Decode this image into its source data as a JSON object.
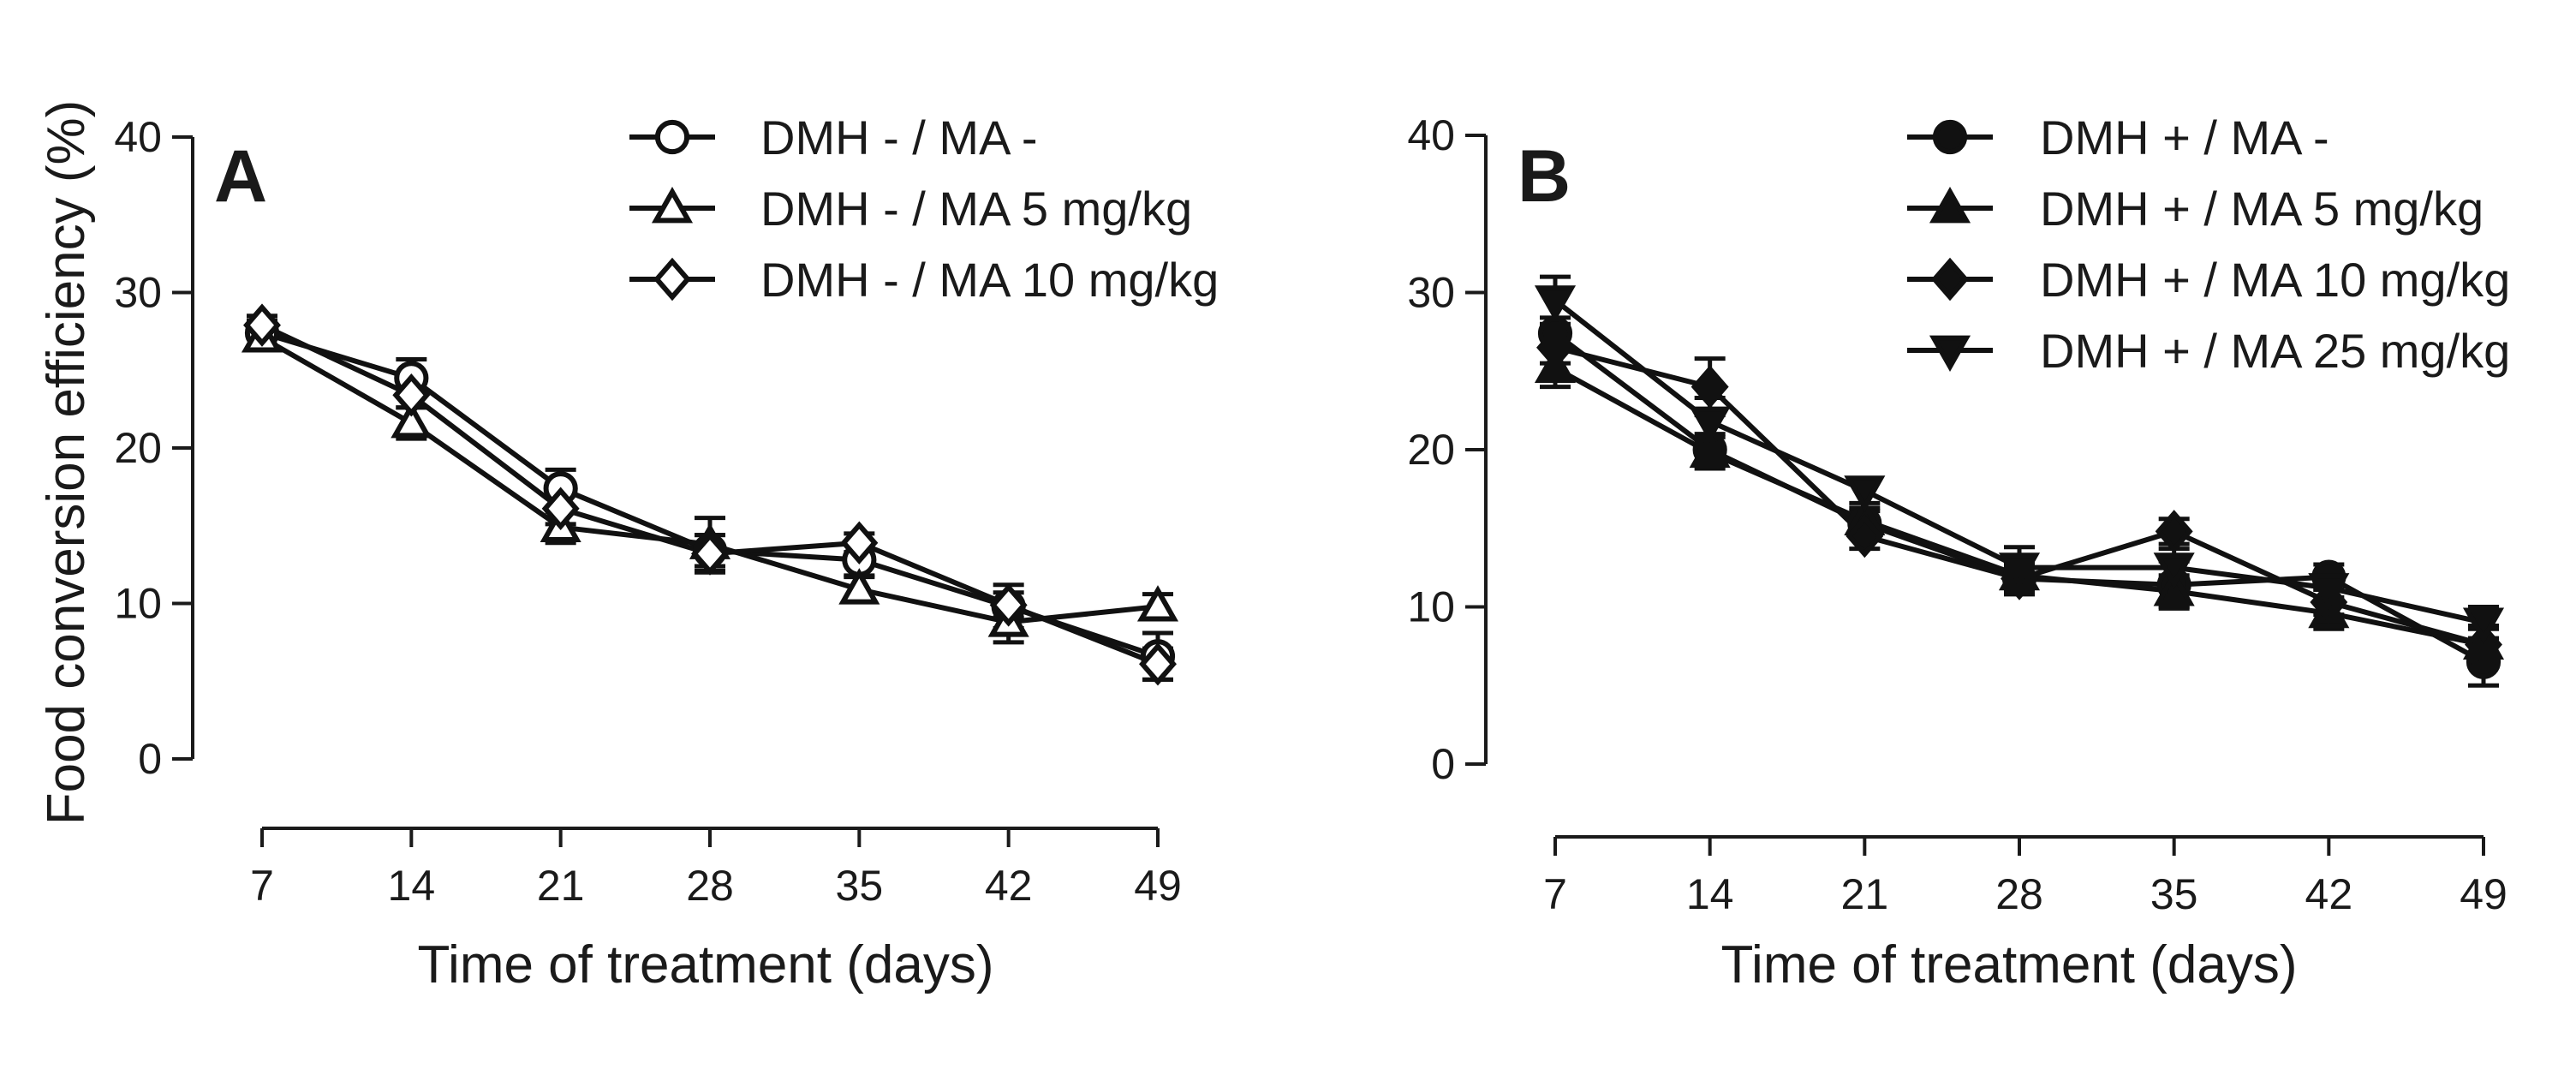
{
  "figure": {
    "ylabel": "Food conversion efficiency (%)"
  },
  "chart_data": [
    {
      "type": "line",
      "panel_label": "A",
      "xlabel": "Time of treatment (days)",
      "ylabel": "Food conversion efficiency (%)",
      "x": [
        7,
        14,
        21,
        28,
        35,
        42,
        49
      ],
      "x_ticks": [
        "7",
        "14",
        "21",
        "28",
        "35",
        "42",
        "49"
      ],
      "y_ticks": [
        "0",
        "10",
        "20",
        "30",
        "40"
      ],
      "xlim": [
        7,
        49
      ],
      "ylim": [
        0,
        40
      ],
      "grid": false,
      "legend_position": "top-right",
      "series": [
        {
          "name": "DMH - / MA -",
          "marker": "circle-open",
          "values": [
            27.4,
            24.5,
            17.4,
            13.4,
            12.8,
            9.8,
            6.6
          ],
          "errors": [
            0.8,
            1.2,
            1.2,
            1.0,
            1.0,
            1.4,
            1.5
          ]
        },
        {
          "name": "DMH - / MA 5 mg/kg",
          "marker": "triangle-up-open",
          "values": [
            27.1,
            21.6,
            14.9,
            13.8,
            10.9,
            8.8,
            9.8
          ],
          "errors": [
            0.6,
            1.0,
            1.0,
            1.7,
            0.8,
            1.3,
            0.8
          ]
        },
        {
          "name": "DMH - / MA 10 mg/kg",
          "marker": "diamond-open",
          "values": [
            27.9,
            23.4,
            16.1,
            13.2,
            13.9,
            9.9,
            6.1
          ],
          "errors": [
            0.6,
            0.8,
            1.0,
            1.2,
            0.6,
            0.8,
            1.0
          ]
        }
      ]
    },
    {
      "type": "line",
      "panel_label": "B",
      "xlabel": "Time of treatment (days)",
      "ylabel": "",
      "x": [
        7,
        14,
        21,
        28,
        35,
        42,
        49
      ],
      "x_ticks": [
        "7",
        "14",
        "21",
        "28",
        "35",
        "42",
        "49"
      ],
      "y_ticks": [
        "0",
        "10",
        "20",
        "30",
        "40"
      ],
      "xlim": [
        7,
        49
      ],
      "ylim": [
        0,
        40
      ],
      "grid": false,
      "legend_position": "top-right",
      "series": [
        {
          "name": "DMH + / MA -",
          "marker": "circle-filled",
          "values": [
            27.4,
            20.0,
            15.3,
            11.8,
            11.4,
            11.9,
            6.5
          ],
          "errors": [
            1.0,
            1.0,
            0.8,
            1.0,
            1.5,
            0.8,
            1.5
          ]
        },
        {
          "name": "DMH + / MA 5 mg/kg",
          "marker": "triangle-up-filled",
          "values": [
            25.2,
            19.8,
            15.5,
            12.0,
            11.0,
            9.6,
            7.6
          ],
          "errors": [
            1.2,
            1.0,
            0.8,
            1.0,
            1.0,
            1.0,
            1.2
          ]
        },
        {
          "name": "DMH + / MA 10 mg/kg",
          "marker": "diamond-filled",
          "values": [
            26.5,
            24.0,
            14.5,
            11.8,
            14.8,
            10.3,
            7.6
          ],
          "errors": [
            1.0,
            1.8,
            0.8,
            0.8,
            0.8,
            0.8,
            1.0
          ]
        },
        {
          "name": "DMH + / MA 25 mg/kg",
          "marker": "triangle-down-filled",
          "values": [
            29.5,
            21.8,
            17.4,
            12.5,
            12.5,
            11.2,
            9.0
          ],
          "errors": [
            1.5,
            1.5,
            0.8,
            1.3,
            1.2,
            1.0,
            1.0
          ]
        }
      ]
    }
  ]
}
